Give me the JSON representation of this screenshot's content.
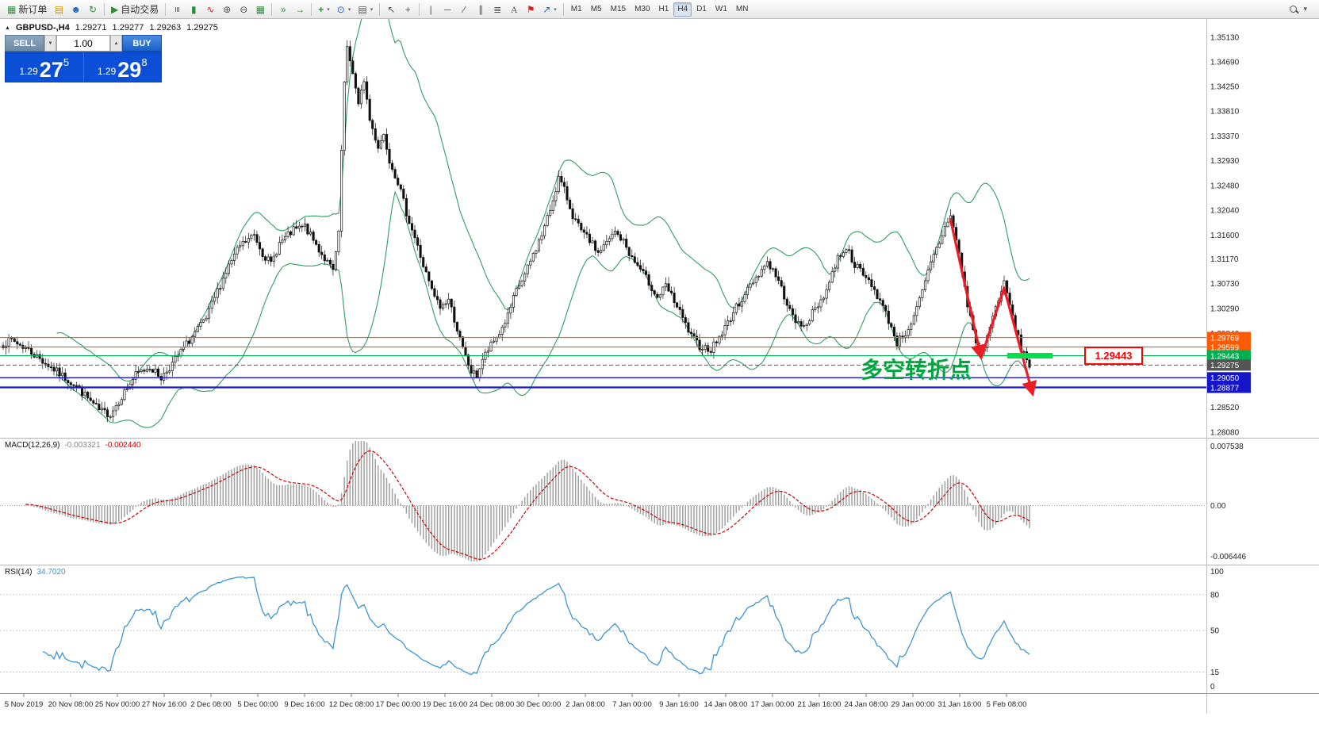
{
  "toolbar": {
    "new_order": "新订单",
    "auto_trading": "自动交易",
    "timeframes": [
      "M1",
      "M5",
      "M15",
      "M30",
      "H1",
      "H4",
      "D1",
      "W1",
      "MN"
    ],
    "active_timeframe": "H4"
  },
  "icons": {
    "new_order": "▦",
    "quotes": "▤",
    "profile": "☻",
    "refresh": "↻",
    "play": "▶",
    "bars": "≡",
    "candles": "▮",
    "line_chart": "∿",
    "zoom_in": "⊕",
    "zoom_out": "⊖",
    "tile": "▦",
    "shift": "»",
    "autoscroll": "→",
    "add_indicator": "+",
    "periods": "⊙",
    "template": "▤",
    "cursor": "↖",
    "crosshair": "+",
    "vline": "|",
    "hline": "─",
    "trendline": "∕",
    "channel": "∥",
    "fibonacci": "≣",
    "text": "A",
    "label": "⚑",
    "arrow_tool": "↗",
    "dropdown": "▾",
    "chevron": "▾",
    "collapse": "▲",
    "vol_down": "▼",
    "vol_up": "▲"
  },
  "symbol_bar": {
    "symbol": "GBPUSD-,H4",
    "open": "1.29271",
    "high": "1.29277",
    "low": "1.29263",
    "close": "1.29275"
  },
  "trade_panel": {
    "sell_label": "SELL",
    "buy_label": "BUY",
    "volume": "1.00",
    "sell_price_main": "1.29",
    "sell_price_big": "27",
    "sell_price_sup": "5",
    "buy_price_main": "1.29",
    "buy_price_big": "29",
    "buy_price_sup": "8"
  },
  "annotations": {
    "turning_point": "多空转折点",
    "price_callout": "1.29443",
    "callout_color": "#ff0000",
    "turning_point_color": "#00a63e",
    "arrow_color": "#ee1c25",
    "highlight_color": "#00e04a"
  },
  "indicators": {
    "macd_name": "MACD(12,26,9)",
    "macd_main": "-0.003321",
    "macd_signal": "-0.002440",
    "rsi_name": "RSI(14)",
    "rsi_value": "34.7020"
  },
  "hlines": [
    {
      "price": 1.29769,
      "label": "1.29769",
      "color": "#ff5a00",
      "width": 1.1,
      "dash": ""
    },
    {
      "price": 1.29599,
      "label": "1.29599",
      "color": "#ff5a00",
      "width": 1.1,
      "dash": ""
    },
    {
      "price": 1.29443,
      "label": "1.29443",
      "color": "#00b050",
      "width": 1.2,
      "dash": ""
    },
    {
      "price": 1.29275,
      "label": "1.29275",
      "color": "#555555",
      "width": 1,
      "dash": "5,3"
    },
    {
      "price": 1.2905,
      "label": "1.29050",
      "color": "#1616c8",
      "width": 1.3,
      "dash": ""
    },
    {
      "price": 1.28877,
      "label": "1.28877",
      "color": "#1616c8",
      "width": 2.2,
      "dash": ""
    }
  ],
  "axes": {
    "price_labels": [
      "1.35130",
      "1.34690",
      "1.34250",
      "1.33810",
      "1.33370",
      "1.32930",
      "1.32480",
      "1.32040",
      "1.31600",
      "1.31170",
      "1.30730",
      "1.30290",
      "1.29840",
      "1.29400",
      "1.28960",
      "1.28520",
      "1.28080"
    ],
    "macd_labels": [
      {
        "value": 0.007538,
        "label": "0.007538"
      },
      {
        "value": 0,
        "label": "0.00"
      },
      {
        "value": -0.006446,
        "label": "-0.006446"
      }
    ],
    "rsi_labels": [
      {
        "value": 100,
        "label": "100",
        "line": false
      },
      {
        "value": 80,
        "label": "80",
        "line": true
      },
      {
        "value": 50,
        "label": "50",
        "line": true
      },
      {
        "value": 15,
        "label": "15",
        "line": true
      },
      {
        "value": 0,
        "label": "0",
        "line": false
      }
    ],
    "time_labels": [
      "5 Nov 2019",
      "20 Nov 08:00",
      "25 Nov 00:00",
      "27 Nov 16:00",
      "2 Dec 08:00",
      "5 Dec 00:00",
      "9 Dec 16:00",
      "12 Dec 08:00",
      "17 Dec 00:00",
      "19 Dec 16:00",
      "24 Dec 08:00",
      "30 Dec 00:00",
      "2 Jan 08:00",
      "7 Jan 00:00",
      "9 Jan 16:00",
      "14 Jan 08:00",
      "17 Jan 00:00",
      "21 Jan 16:00",
      "24 Jan 08:00",
      "29 Jan 00:00",
      "31 Jan 16:00",
      "5 Feb 08:00"
    ]
  },
  "chart_data": {
    "type": "candlestick",
    "symbol": "GBPUSD-",
    "timeframe": "H4",
    "title": "GBPUSD-,H4",
    "ohlc_current": {
      "open": 1.29271,
      "high": 1.29277,
      "low": 1.29263,
      "close": 1.29275
    },
    "y_range": [
      1.2808,
      1.3513
    ],
    "x_range": [
      "5 Nov 2019",
      "5 Feb 2020 08:00"
    ],
    "bars": 365,
    "close_path_anchors": [
      [
        0,
        1.2965
      ],
      [
        3,
        1.2972
      ],
      [
        8,
        1.2958
      ],
      [
        14,
        1.2935
      ],
      [
        20,
        1.2912
      ],
      [
        26,
        1.289
      ],
      [
        30,
        1.2868
      ],
      [
        34,
        1.2846
      ],
      [
        38,
        1.284
      ],
      [
        42,
        1.2872
      ],
      [
        47,
        1.291
      ],
      [
        52,
        1.2925
      ],
      [
        56,
        1.2905
      ],
      [
        60,
        1.293
      ],
      [
        64,
        1.2958
      ],
      [
        68,
        1.2985
      ],
      [
        72,
        1.301
      ],
      [
        76,
        1.306
      ],
      [
        80,
        1.3105
      ],
      [
        84,
        1.314
      ],
      [
        89,
        1.316
      ],
      [
        92,
        1.3128
      ],
      [
        95,
        1.3108
      ],
      [
        98,
        1.3145
      ],
      [
        103,
        1.3168
      ],
      [
        107,
        1.3175
      ],
      [
        110,
        1.315
      ],
      [
        114,
        1.3118
      ],
      [
        117,
        1.3095
      ],
      [
        119,
        1.316
      ],
      [
        120,
        1.331
      ],
      [
        121,
        1.343
      ],
      [
        122,
        1.349
      ],
      [
        124,
        1.3452
      ],
      [
        126,
        1.339
      ],
      [
        128,
        1.3438
      ],
      [
        130,
        1.3365
      ],
      [
        133,
        1.3318
      ],
      [
        135,
        1.334
      ],
      [
        137,
        1.3295
      ],
      [
        140,
        1.3255
      ],
      [
        143,
        1.32
      ],
      [
        146,
        1.3155
      ],
      [
        149,
        1.3105
      ],
      [
        152,
        1.306
      ],
      [
        155,
        1.303
      ],
      [
        158,
        1.3045
      ],
      [
        160,
        1.301
      ],
      [
        163,
        1.2955
      ],
      [
        166,
        1.2915
      ],
      [
        168,
        1.2908
      ],
      [
        170,
        1.2938
      ],
      [
        173,
        1.2962
      ],
      [
        176,
        1.2985
      ],
      [
        179,
        1.3015
      ],
      [
        182,
        1.306
      ],
      [
        185,
        1.3088
      ],
      [
        188,
        1.3125
      ],
      [
        191,
        1.316
      ],
      [
        194,
        1.3205
      ],
      [
        197,
        1.3262
      ],
      [
        199,
        1.324
      ],
      [
        202,
        1.3195
      ],
      [
        205,
        1.3165
      ],
      [
        208,
        1.315
      ],
      [
        211,
        1.3128
      ],
      [
        214,
        1.3145
      ],
      [
        217,
        1.3165
      ],
      [
        220,
        1.3148
      ],
      [
        223,
        1.3118
      ],
      [
        226,
        1.3098
      ],
      [
        229,
        1.3075
      ],
      [
        232,
        1.3048
      ],
      [
        235,
        1.3068
      ],
      [
        238,
        1.3042
      ],
      [
        241,
        1.301
      ],
      [
        244,
        1.2978
      ],
      [
        247,
        1.2962
      ],
      [
        251,
        1.2956
      ],
      [
        255,
        1.2985
      ],
      [
        259,
        1.3022
      ],
      [
        263,
        1.3055
      ],
      [
        267,
        1.3085
      ],
      [
        271,
        1.3112
      ],
      [
        274,
        1.3088
      ],
      [
        277,
        1.3052
      ],
      [
        280,
        1.3012
      ],
      [
        283,
        1.2995
      ],
      [
        286,
        1.3012
      ],
      [
        289,
        1.3035
      ],
      [
        292,
        1.3062
      ],
      [
        296,
        1.312
      ],
      [
        299,
        1.3138
      ],
      [
        302,
        1.3108
      ],
      [
        305,
        1.3088
      ],
      [
        308,
        1.3072
      ],
      [
        311,
        1.3042
      ],
      [
        314,
        1.3008
      ],
      [
        317,
        1.2968
      ],
      [
        320,
        1.2985
      ],
      [
        323,
        1.3012
      ],
      [
        326,
        1.3058
      ],
      [
        329,
        1.311
      ],
      [
        333,
        1.316
      ],
      [
        336,
        1.3198
      ],
      [
        339,
        1.3125
      ],
      [
        342,
        1.3035
      ],
      [
        345,
        1.2968
      ],
      [
        347,
        1.2948
      ],
      [
        350,
        1.2995
      ],
      [
        353,
        1.3048
      ],
      [
        355,
        1.3072
      ],
      [
        357,
        1.3035
      ],
      [
        359,
        1.2992
      ],
      [
        361,
        1.2958
      ],
      [
        364,
        1.29275
      ]
    ],
    "indicators": [
      {
        "name": "Bollinger Bands",
        "period": 20,
        "deviation": 2,
        "color": "#2f9e5f"
      },
      {
        "name": "MACD",
        "fast": 12,
        "slow": 26,
        "signal": 9,
        "current_main": -0.003321,
        "current_signal": -0.00244,
        "scale": [
          -0.006446,
          0.007538
        ]
      },
      {
        "name": "RSI",
        "period": 14,
        "current": 34.702,
        "scale": [
          0,
          100
        ],
        "levels": [
          80,
          50,
          15
        ]
      }
    ],
    "horizontal_levels": [
      1.29769,
      1.29599,
      1.29443,
      1.29275,
      1.2905,
      1.28877
    ]
  }
}
